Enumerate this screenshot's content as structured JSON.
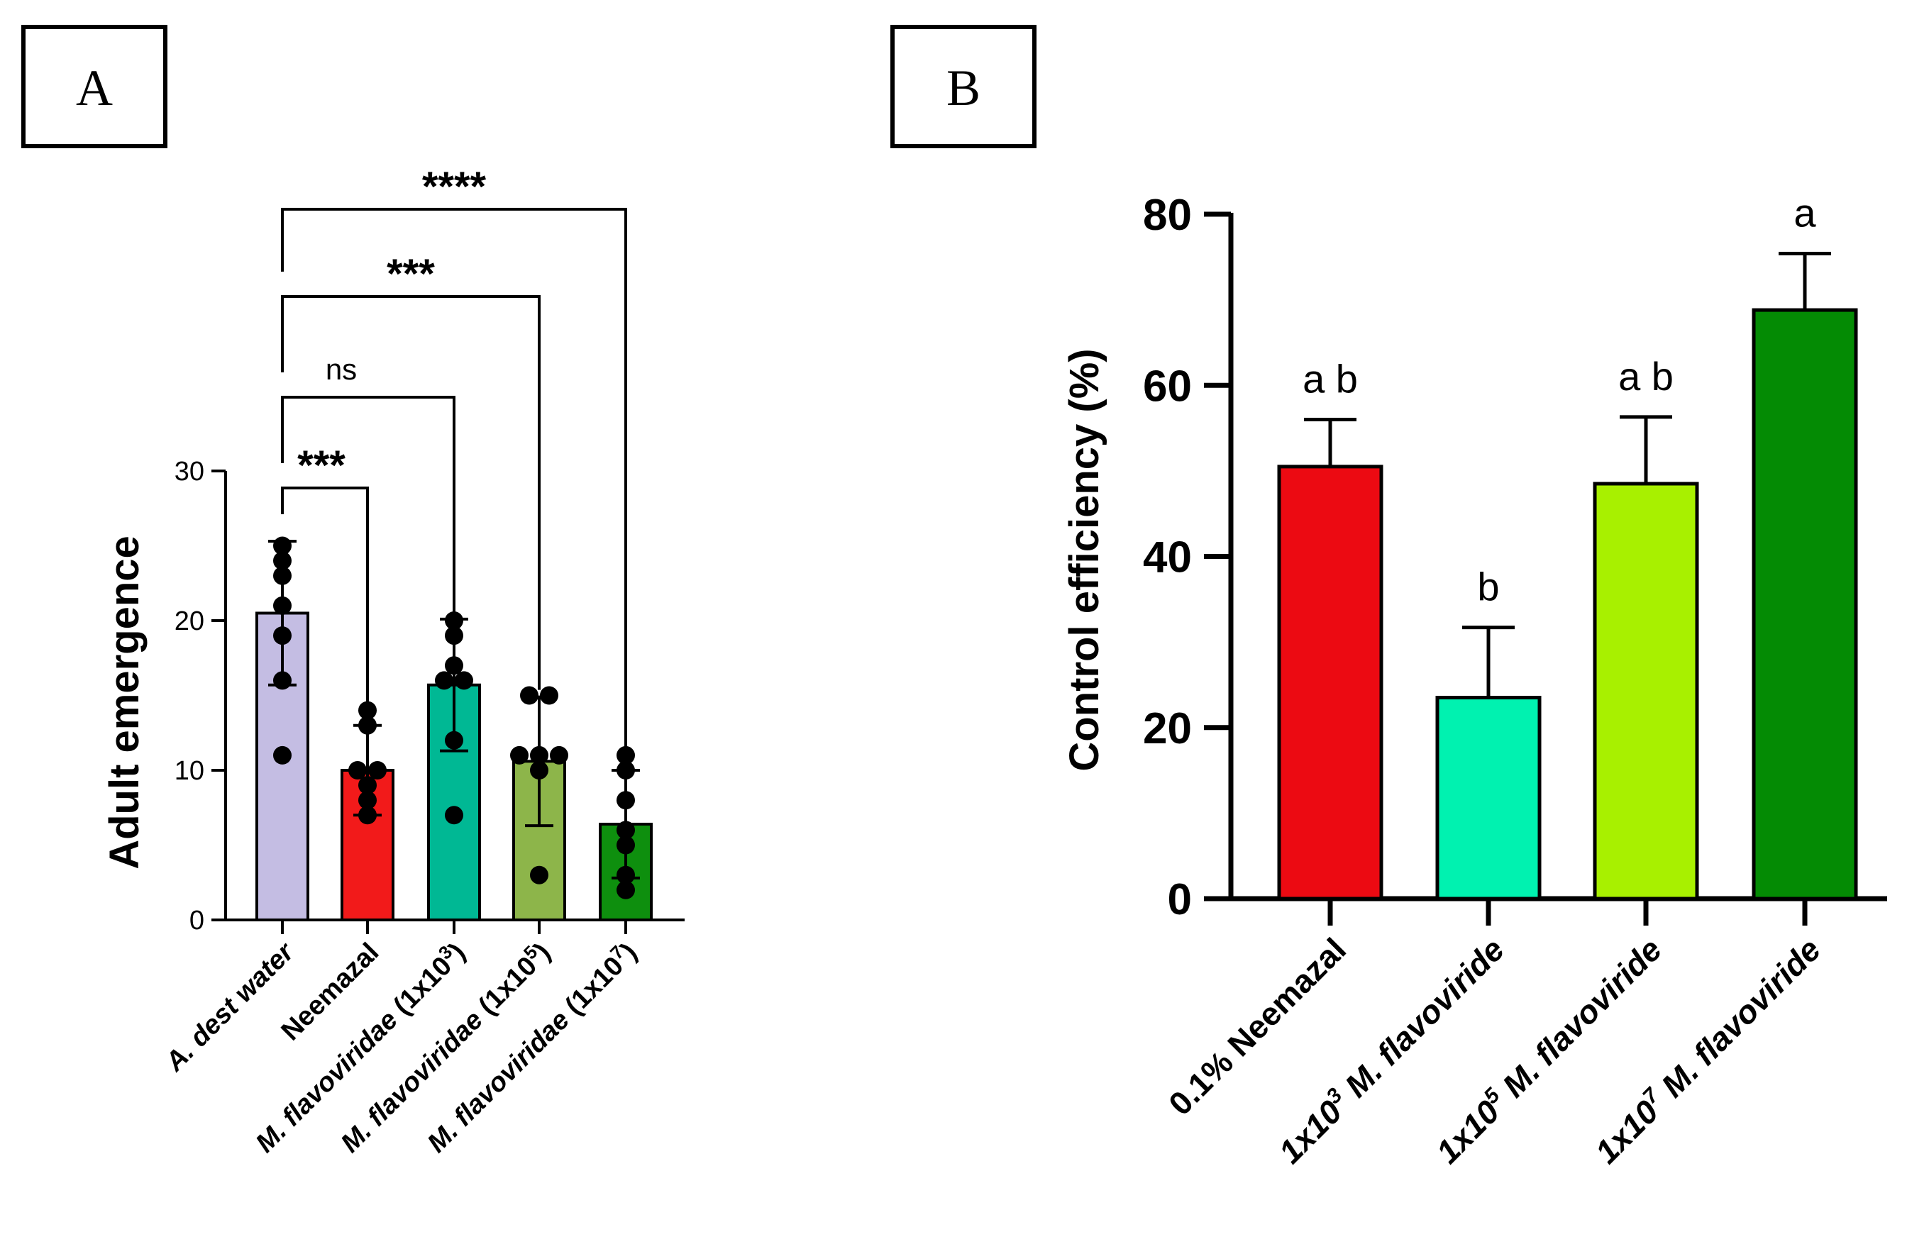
{
  "chart_data": [
    {
      "panel_label": "A",
      "type": "bar",
      "ylabel": "Adult emergence",
      "ylim": [
        0,
        30
      ],
      "yticks": [
        "0",
        "10",
        "20",
        "30"
      ],
      "categories": [
        {
          "prefix": "",
          "italic": "A. dest water",
          "sup": "",
          "suffix": ""
        },
        {
          "prefix": "",
          "italic": "",
          "sup": "",
          "suffix": "Neemazal"
        },
        {
          "prefix": "",
          "italic": "M. flavoviridae",
          "sup": "3",
          "suffix": " (1x10",
          "close": ")"
        },
        {
          "prefix": "",
          "italic": "M. flavoviridae",
          "sup": "5",
          "suffix": " (1x10",
          "close": ")"
        },
        {
          "prefix": "",
          "italic": "M. flavoviridae",
          "sup": "7",
          "suffix": " (1x10",
          "close": ")"
        }
      ],
      "means": [
        20.5,
        10.0,
        15.7,
        10.6,
        6.4
      ],
      "sd": [
        4.8,
        3.0,
        4.4,
        4.3,
        3.6
      ],
      "points": [
        [
          25,
          24,
          23,
          21,
          19,
          16,
          11
        ],
        [
          14,
          13,
          10,
          10,
          9,
          8,
          7
        ],
        [
          20,
          19,
          17,
          16,
          16,
          12,
          7
        ],
        [
          15,
          15,
          11,
          11,
          11,
          10,
          3
        ],
        [
          11,
          10,
          8,
          6,
          5,
          3,
          2
        ]
      ],
      "colors": [
        "#c4bde3",
        "#f21a1a",
        "#00b894",
        "#8db54a",
        "#0e8f0e"
      ],
      "comparisons": [
        {
          "to": 1,
          "label": "***"
        },
        {
          "to": 2,
          "label": "ns"
        },
        {
          "to": 3,
          "label": "***"
        },
        {
          "to": 4,
          "label": "****"
        }
      ]
    },
    {
      "panel_label": "B",
      "type": "bar",
      "ylabel": "Control efficiency (%)",
      "ylim": [
        0,
        80
      ],
      "yticks": [
        "0",
        "20",
        "40",
        "60",
        "80"
      ],
      "categories": [
        {
          "prefix": "0.1% Neemazal",
          "sup": "",
          "italic": ""
        },
        {
          "prefix": "1x10",
          "sup": "3",
          "italic": "  M. flavoviride"
        },
        {
          "prefix": "1x10",
          "sup": "5",
          "italic": "  M. flavoviride"
        },
        {
          "prefix": "1x10",
          "sup": "7",
          "italic": " M. flavoviride"
        }
      ],
      "means": [
        50.5,
        23.5,
        48.5,
        68.8
      ],
      "sd": [
        5.5,
        8.2,
        7.8,
        6.6
      ],
      "colors": [
        "#ec0a12",
        "#00f2b0",
        "#a8f000",
        "#048b04"
      ],
      "letters": [
        "a b",
        "b",
        "a b",
        "a"
      ]
    }
  ]
}
